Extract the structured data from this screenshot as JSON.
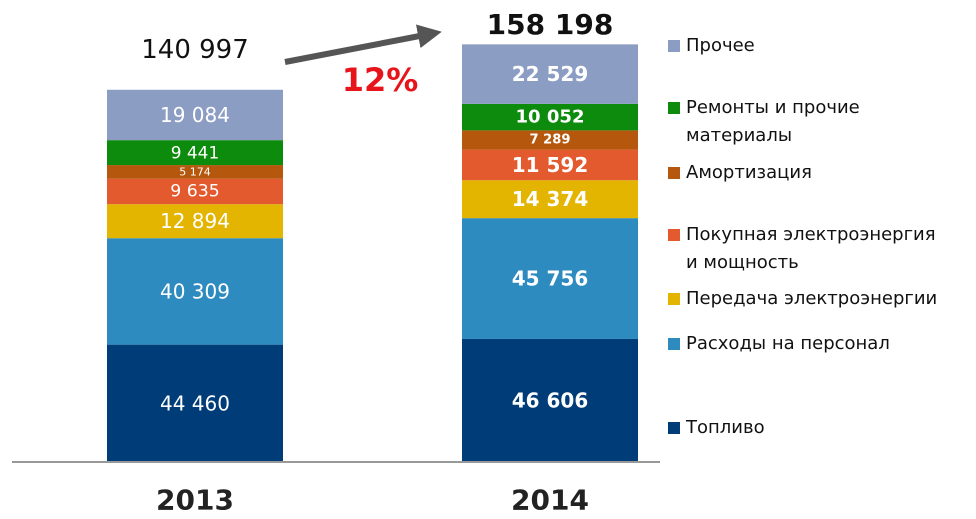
{
  "chart_data": {
    "type": "stacked_bar",
    "categories": [
      "2013",
      "2014"
    ],
    "series": [
      {
        "name": "Топливо",
        "color": "#003c78",
        "values": [
          44460,
          46606
        ],
        "value_labels": [
          "44 460",
          "46 606"
        ]
      },
      {
        "name": "Расходы на персонал",
        "color": "#2e8bc0",
        "values": [
          40309,
          45756
        ],
        "value_labels": [
          "40 309",
          "45 756"
        ]
      },
      {
        "name": "Передача электроэнергии",
        "color": "#e3b400",
        "values": [
          12894,
          14374
        ],
        "value_labels": [
          "12 894",
          "14 374"
        ]
      },
      {
        "name": "Покупная электроэнергия и мощность",
        "color": "#e35a2f",
        "values": [
          9635,
          11592
        ],
        "value_labels": [
          "9 635",
          "11 592"
        ]
      },
      {
        "name": "Амортизация",
        "color": "#b5570d",
        "values": [
          5174,
          7289
        ],
        "value_labels": [
          "5 174",
          "7 289"
        ]
      },
      {
        "name": "Ремонты и прочие материалы",
        "color": "#0c8b0c",
        "values": [
          9441,
          10052
        ],
        "value_labels": [
          "9 441",
          "10 052"
        ]
      },
      {
        "name": "Прочее",
        "color": "#8c9dc4",
        "values": [
          19084,
          22529
        ],
        "value_labels": [
          "19 084",
          "22 529"
        ]
      }
    ],
    "totals": [
      140997,
      158198
    ],
    "total_labels": [
      "140 997",
      "158 198"
    ],
    "annotations": [
      "12%"
    ],
    "ylim": [
      0,
      175000
    ]
  }
}
